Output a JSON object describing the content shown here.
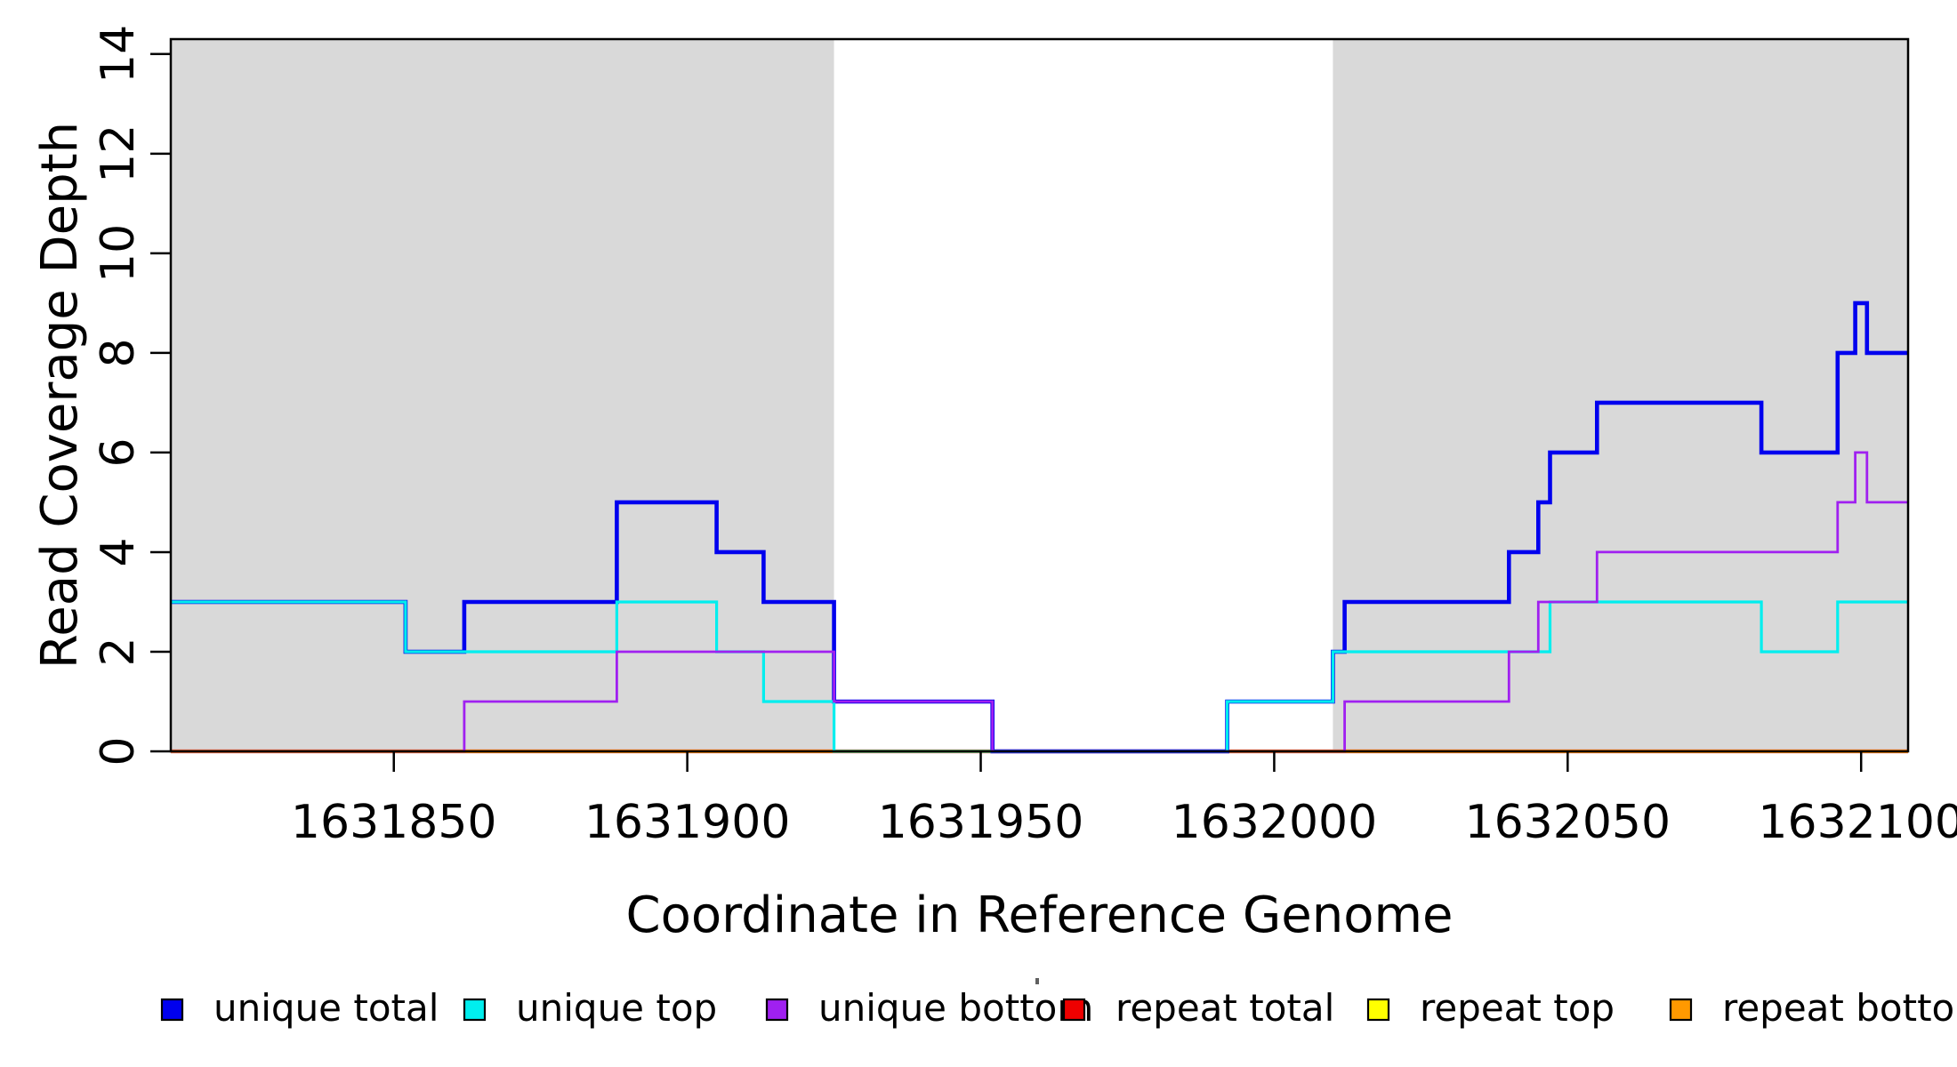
{
  "chart_data": {
    "type": "line",
    "subtype": "step-coverage",
    "title": "",
    "xlabel": "Coordinate in Reference Genome",
    "ylabel": "Read Coverage Depth",
    "xlim": [
      1631812,
      1632108
    ],
    "ylim": [
      0,
      14.3
    ],
    "x_ticks": [
      1631850,
      1631900,
      1631950,
      1632000,
      1632050,
      1632100
    ],
    "y_ticks": [
      0,
      2,
      4,
      6,
      8,
      10,
      12,
      14
    ],
    "grid": false,
    "legend_position": "bottom",
    "background_color": "#ffffff",
    "shade_color": "#d9d9d9",
    "frame_color": "#000000",
    "shaded_regions": [
      [
        1631812,
        1631925
      ],
      [
        1632010,
        1632108
      ]
    ],
    "series": [
      {
        "name": "unique total",
        "color": "#0000ee",
        "points": [
          [
            1631812,
            3
          ],
          [
            1631852,
            2
          ],
          [
            1631862,
            3
          ],
          [
            1631888,
            5
          ],
          [
            1631905,
            4
          ],
          [
            1631913,
            3
          ],
          [
            1631925,
            1
          ],
          [
            1631952,
            0
          ],
          [
            1631992,
            1
          ],
          [
            1632010,
            2
          ],
          [
            1632012,
            3
          ],
          [
            1632040,
            4
          ],
          [
            1632045,
            5
          ],
          [
            1632047,
            6
          ],
          [
            1632055,
            7
          ],
          [
            1632083,
            6
          ],
          [
            1632096,
            8
          ],
          [
            1632099,
            9
          ],
          [
            1632101,
            8
          ]
        ]
      },
      {
        "name": "unique top",
        "color": "#00eeee",
        "points": [
          [
            1631812,
            3
          ],
          [
            1631852,
            2
          ],
          [
            1631888,
            3
          ],
          [
            1631905,
            2
          ],
          [
            1631913,
            1
          ],
          [
            1631925,
            0
          ],
          [
            1631992,
            1
          ],
          [
            1632010,
            2
          ],
          [
            1632047,
            3
          ],
          [
            1632083,
            2
          ],
          [
            1632096,
            3
          ]
        ]
      },
      {
        "name": "unique bottom",
        "color": "#a020f0",
        "points": [
          [
            1631812,
            0
          ],
          [
            1631862,
            1
          ],
          [
            1631888,
            2
          ],
          [
            1631925,
            1
          ],
          [
            1631952,
            0
          ],
          [
            1632012,
            1
          ],
          [
            1632040,
            2
          ],
          [
            1632045,
            3
          ],
          [
            1632055,
            4
          ],
          [
            1632096,
            5
          ],
          [
            1632099,
            6
          ],
          [
            1632101,
            5
          ]
        ]
      },
      {
        "name": "repeat total",
        "color": "#ee0000",
        "points": [
          [
            1631812,
            0
          ]
        ]
      },
      {
        "name": "repeat top",
        "color": "#ffff00",
        "points": [
          [
            1631812,
            0
          ]
        ]
      },
      {
        "name": "repeat bottom",
        "color": "#ff9900",
        "points": [
          [
            1631812,
            0
          ]
        ]
      }
    ]
  }
}
